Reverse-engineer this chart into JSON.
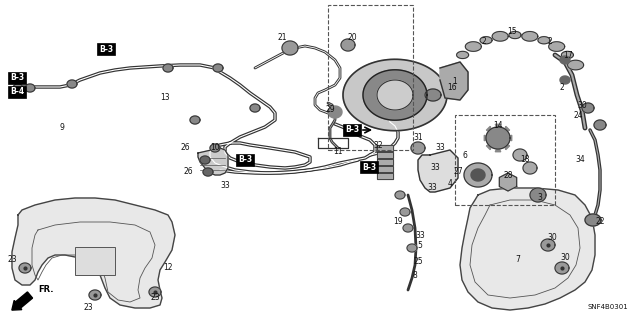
{
  "background_color": "#ffffff",
  "diagram_code": "SNF4B0301",
  "figsize": [
    6.4,
    3.19
  ],
  "dpi": 100,
  "text_color": "#111111",
  "line_color": "#222222",
  "pipe_color": "#333333"
}
